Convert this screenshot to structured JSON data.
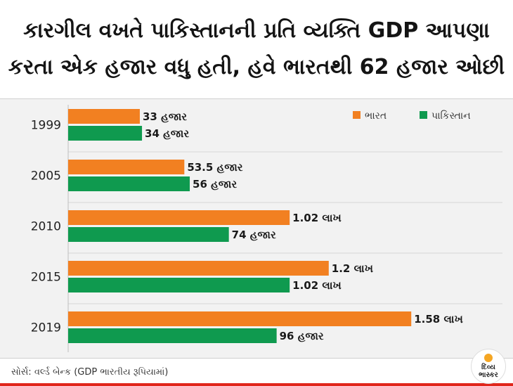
{
  "header": {
    "title_line1": "કારગીલ વખતે પાકિસ્તાનની પ્રતિ વ્યક્તિ GDP આપણા",
    "title_line2": "કરતા એક હજાર વધુ હતી, હવે ભારતથી 62 હજાર ઓછી"
  },
  "footer": {
    "source": "સોર્સ: વર્લ્ડ બેન્ક   (GDP ભારતીય રૂપિયામાં)",
    "logo_text": "દિવ્ય ભાસ્કર"
  },
  "colors": {
    "india": "#f28021",
    "pakistan": "#0f9a4f",
    "accent": "#e0261b"
  },
  "chart_data": {
    "type": "bar",
    "orientation": "horizontal",
    "categories": [
      "1999",
      "2005",
      "2010",
      "2015",
      "2019"
    ],
    "series": [
      {
        "name": "ભારત",
        "color": "#f28021",
        "values": [
          33000,
          53500,
          102000,
          120000,
          158000
        ],
        "labels": [
          "33 હજાર",
          "53.5 હજાર",
          "1.02 લાખ",
          "1.2 લાખ",
          "1.58 લાખ"
        ]
      },
      {
        "name": "પાકિસ્તાન",
        "color": "#0f9a4f",
        "values": [
          34000,
          56000,
          74000,
          102000,
          96000
        ],
        "labels": [
          "34 હજાર",
          "56 હજાર",
          "74 હજાર",
          "1.02 લાખ",
          "96 હજાર"
        ]
      }
    ],
    "xlim": [
      0,
      200000
    ],
    "grid": true,
    "legend": "top-right"
  }
}
